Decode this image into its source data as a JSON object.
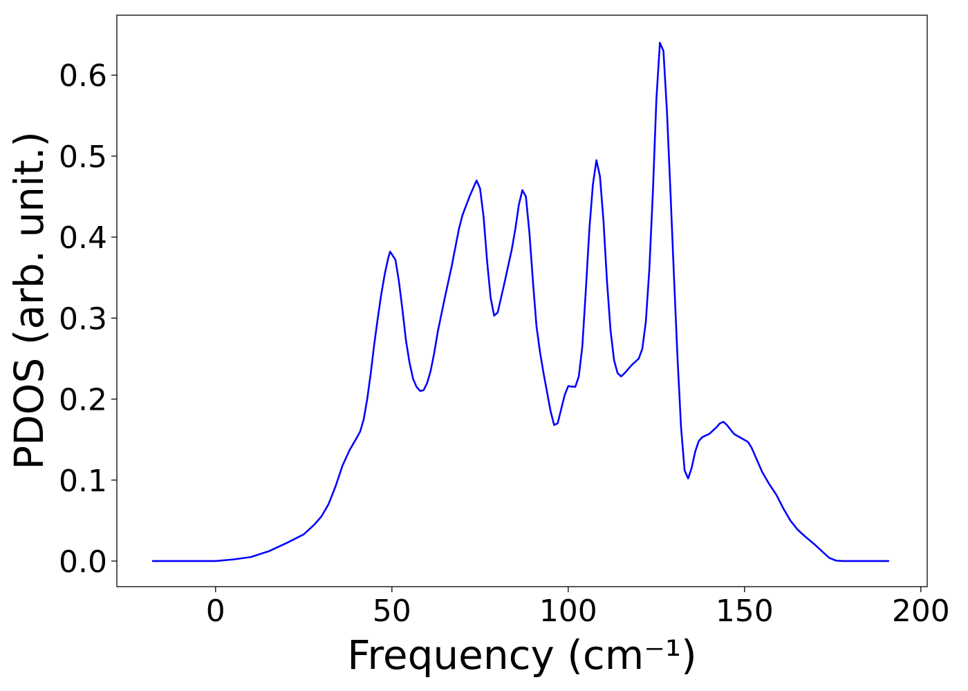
{
  "chart_data": {
    "type": "line",
    "xlabel": "Frequency (cm⁻¹)",
    "ylabel": "PDOS (arb. unit.)",
    "xlim": [
      -28,
      201.8
    ],
    "ylim": [
      -0.0316,
      0.674
    ],
    "xticks": [
      0,
      50,
      100,
      150,
      200
    ],
    "yticks": [
      {
        "value": 0,
        "label": "0.0"
      },
      0.1,
      0.2,
      0.3,
      0.4,
      0.5,
      0.6
    ],
    "series": [
      {
        "color": "#0000ff",
        "x": [
          -18,
          0,
          5,
          10,
          15,
          20,
          25,
          28,
          30,
          32,
          34,
          36,
          38,
          40,
          41,
          42,
          43,
          44,
          45,
          46,
          47,
          48,
          49,
          49.5,
          51,
          52,
          53,
          54,
          55,
          56,
          57,
          58,
          59,
          60,
          61,
          62,
          63,
          65,
          67,
          69,
          70,
          72,
          74,
          75,
          76,
          77,
          78,
          79,
          80,
          82,
          84,
          85,
          86,
          87,
          88,
          89,
          90,
          91,
          92,
          93,
          95,
          96,
          97,
          99,
          100,
          102,
          103,
          104,
          105,
          106,
          107,
          108,
          109,
          110,
          111,
          112,
          113,
          114,
          115,
          116,
          118,
          120,
          121,
          122,
          123,
          124,
          125,
          126,
          127,
          128,
          129,
          130,
          131,
          132,
          133,
          134,
          135,
          136,
          137,
          138,
          140,
          142,
          143,
          144,
          145,
          147,
          149,
          151,
          152,
          154,
          155,
          157,
          159,
          161,
          163,
          165,
          167,
          170,
          172,
          174,
          176,
          178,
          191
        ],
        "values": [
          0,
          0,
          0.002,
          0.005,
          0.012,
          0.022,
          0.033,
          0.045,
          0.055,
          0.07,
          0.092,
          0.118,
          0.137,
          0.152,
          0.16,
          0.175,
          0.2,
          0.232,
          0.268,
          0.3,
          0.33,
          0.355,
          0.375,
          0.382,
          0.372,
          0.345,
          0.31,
          0.272,
          0.245,
          0.225,
          0.215,
          0.21,
          0.211,
          0.22,
          0.235,
          0.257,
          0.283,
          0.325,
          0.365,
          0.41,
          0.427,
          0.45,
          0.47,
          0.46,
          0.425,
          0.37,
          0.325,
          0.303,
          0.307,
          0.345,
          0.385,
          0.41,
          0.44,
          0.458,
          0.45,
          0.405,
          0.345,
          0.29,
          0.258,
          0.232,
          0.185,
          0.168,
          0.17,
          0.205,
          0.216,
          0.215,
          0.228,
          0.265,
          0.335,
          0.41,
          0.465,
          0.495,
          0.475,
          0.42,
          0.345,
          0.285,
          0.248,
          0.232,
          0.228,
          0.232,
          0.242,
          0.25,
          0.262,
          0.295,
          0.36,
          0.455,
          0.57,
          0.64,
          0.63,
          0.555,
          0.455,
          0.35,
          0.25,
          0.165,
          0.112,
          0.102,
          0.115,
          0.135,
          0.148,
          0.153,
          0.157,
          0.165,
          0.17,
          0.172,
          0.168,
          0.157,
          0.152,
          0.147,
          0.14,
          0.12,
          0.11,
          0.095,
          0.082,
          0.065,
          0.05,
          0.039,
          0.031,
          0.02,
          0.012,
          0.004,
          0.0005,
          0,
          0
        ]
      }
    ]
  }
}
